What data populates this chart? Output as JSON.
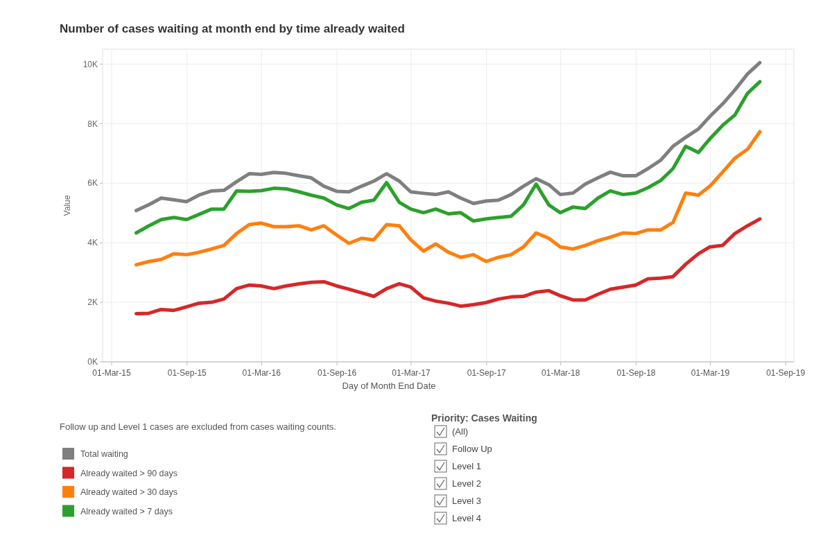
{
  "chart_data": {
    "type": "line",
    "title": "Number of cases waiting at month end by time already waited",
    "xlabel": "Day of Month End Date",
    "ylabel": "Value",
    "x": [
      "2015-04-30",
      "2015-05-31",
      "2015-06-30",
      "2015-07-31",
      "2015-08-31",
      "2015-09-30",
      "2015-10-31",
      "2015-11-30",
      "2015-12-31",
      "2016-01-31",
      "2016-02-29",
      "2016-03-31",
      "2016-04-30",
      "2016-05-31",
      "2016-06-30",
      "2016-07-31",
      "2016-08-31",
      "2016-09-30",
      "2016-10-31",
      "2016-11-30",
      "2016-12-31",
      "2017-01-31",
      "2017-02-28",
      "2017-03-31",
      "2017-04-30",
      "2017-05-31",
      "2017-06-30",
      "2017-07-31",
      "2017-08-31",
      "2017-09-30",
      "2017-10-31",
      "2017-11-30",
      "2017-12-31",
      "2018-01-31",
      "2018-02-28",
      "2018-03-31",
      "2018-04-30",
      "2018-05-31",
      "2018-06-30",
      "2018-07-31",
      "2018-08-31",
      "2018-09-30",
      "2018-10-31",
      "2018-11-30",
      "2018-12-31",
      "2019-01-31",
      "2019-02-28",
      "2019-03-31",
      "2019-04-30",
      "2019-05-31",
      "2019-06-30"
    ],
    "series": [
      {
        "name": "Total waiting",
        "color": "#7f7f7f",
        "values": [
          5080,
          5280,
          5500,
          5440,
          5380,
          5600,
          5740,
          5760,
          6050,
          6320,
          6300,
          6360,
          6330,
          6250,
          6180,
          5900,
          5730,
          5710,
          5900,
          6070,
          6320,
          6070,
          5710,
          5660,
          5620,
          5710,
          5500,
          5320,
          5400,
          5430,
          5620,
          5900,
          6150,
          5950,
          5620,
          5670,
          5970,
          6180,
          6370,
          6250,
          6250,
          6490,
          6770,
          7240,
          7540,
          7820,
          8240,
          8660,
          9130,
          9670,
          10050
        ]
      },
      {
        "name": "Already waited > 90 days",
        "color": "#d62728",
        "values": [
          1620,
          1630,
          1760,
          1730,
          1850,
          1970,
          2000,
          2110,
          2460,
          2580,
          2550,
          2460,
          2550,
          2620,
          2670,
          2690,
          2550,
          2440,
          2320,
          2200,
          2460,
          2620,
          2510,
          2150,
          2040,
          1970,
          1870,
          1920,
          1990,
          2110,
          2180,
          2200,
          2340,
          2390,
          2220,
          2080,
          2080,
          2270,
          2440,
          2510,
          2580,
          2790,
          2810,
          2860,
          3280,
          3630,
          3860,
          3910,
          4310,
          4570,
          4800
        ]
      },
      {
        "name": "Already waited > 30 days",
        "color": "#ff7f0e",
        "values": [
          3260,
          3370,
          3440,
          3630,
          3600,
          3680,
          3790,
          3910,
          4310,
          4610,
          4660,
          4540,
          4540,
          4570,
          4430,
          4570,
          4260,
          3980,
          4150,
          4100,
          4610,
          4570,
          4100,
          3720,
          3960,
          3680,
          3510,
          3600,
          3370,
          3510,
          3600,
          3860,
          4330,
          4150,
          3860,
          3790,
          3910,
          4070,
          4190,
          4330,
          4310,
          4430,
          4430,
          4680,
          5670,
          5600,
          5900,
          6370,
          6840,
          7140,
          7730
        ]
      },
      {
        "name": "Already waited > 7 days",
        "color": "#2ca02c",
        "values": [
          4330,
          4570,
          4780,
          4850,
          4780,
          4950,
          5130,
          5130,
          5740,
          5730,
          5750,
          5830,
          5810,
          5710,
          5600,
          5500,
          5270,
          5150,
          5360,
          5430,
          6020,
          5360,
          5130,
          5010,
          5130,
          4970,
          5010,
          4730,
          4800,
          4850,
          4890,
          5270,
          5970,
          5270,
          5010,
          5200,
          5150,
          5500,
          5740,
          5620,
          5670,
          5850,
          6090,
          6490,
          7240,
          7030,
          7490,
          7940,
          8290,
          9020,
          9410
        ]
      }
    ],
    "xlim": [
      "2015-02-07",
      "2019-09-21"
    ],
    "xticks": [
      {
        "value": "2015-03-01",
        "label": "01-Mar-15"
      },
      {
        "value": "2015-09-01",
        "label": "01-Sep-15"
      },
      {
        "value": "2016-03-01",
        "label": "01-Mar-16"
      },
      {
        "value": "2016-09-01",
        "label": "01-Sep-16"
      },
      {
        "value": "2017-03-01",
        "label": "01-Mar-17"
      },
      {
        "value": "2017-09-01",
        "label": "01-Sep-17"
      },
      {
        "value": "2018-03-01",
        "label": "01-Mar-18"
      },
      {
        "value": "2018-09-01",
        "label": "01-Sep-18"
      },
      {
        "value": "2019-03-01",
        "label": "01-Mar-19"
      },
      {
        "value": "2019-09-01",
        "label": "01-Sep-19"
      }
    ],
    "ylim": [
      0,
      10500
    ],
    "yticks": [
      {
        "value": 0,
        "label": "0K"
      },
      {
        "value": 2000,
        "label": "2K"
      },
      {
        "value": 4000,
        "label": "4K"
      },
      {
        "value": 6000,
        "label": "6K"
      },
      {
        "value": 8000,
        "label": "8K"
      },
      {
        "value": 10000,
        "label": "10K"
      }
    ],
    "grid": true,
    "legend": "bottom left",
    "marker": "none",
    "line_style": "solid",
    "annotations": [
      "Follow up and Level 1 cases are excluded from cases waiting counts.",
      "Priority: Cases Waiting",
      "(All)",
      "Follow Up",
      "Level 1",
      "Level 2",
      "Level 3",
      "Level 4"
    ]
  }
}
